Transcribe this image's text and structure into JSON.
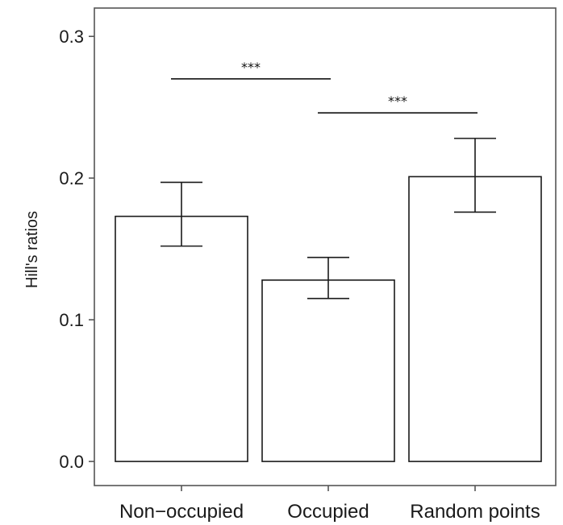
{
  "chart_data": {
    "type": "bar",
    "ylabel": "Hill's ratios",
    "categories": [
      "Non−occupied",
      "Occupied",
      "Random points"
    ],
    "values": [
      0.173,
      0.128,
      0.201
    ],
    "error_upper": [
      0.197,
      0.144,
      0.228
    ],
    "error_lower": [
      0.152,
      0.115,
      0.176
    ],
    "ylim": [
      -0.017,
      0.32
    ],
    "yticks": [
      0.0,
      0.1,
      0.2,
      0.3
    ],
    "ytick_labels": [
      "0.0",
      "0.1",
      "0.2",
      "0.3"
    ],
    "grid": false,
    "significance": [
      {
        "from": 0,
        "to": 1,
        "y": 0.27,
        "label": "***"
      },
      {
        "from": 1,
        "to": 2,
        "y": 0.246,
        "label": "***"
      }
    ],
    "colors": {
      "bar_fill": "#ffffff",
      "bar_stroke": "#1a1a1a",
      "axis": "#555555"
    }
  }
}
